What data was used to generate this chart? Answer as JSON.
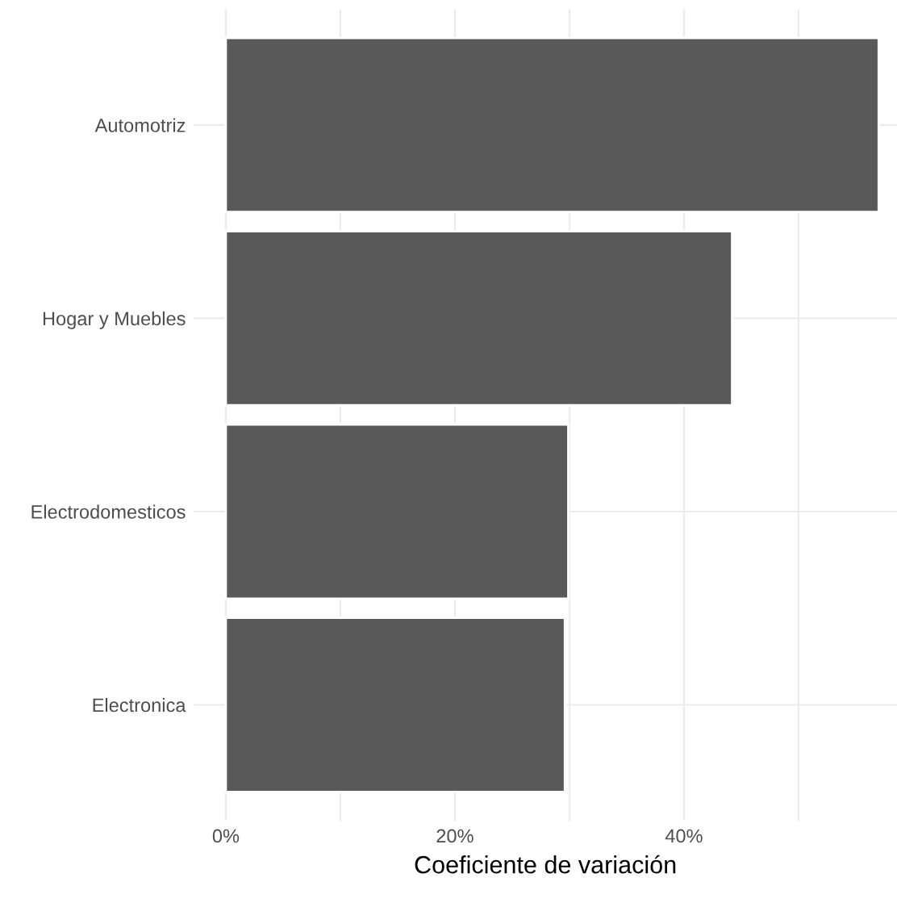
{
  "chart_data": {
    "type": "bar",
    "orientation": "horizontal",
    "xlabel": "Coeficiente de variación",
    "categories": [
      "Automotriz",
      "Hogar y Muebles",
      "Electrodomesticos",
      "Electronica"
    ],
    "values": [
      57.0,
      44.2,
      29.9,
      29.6
    ],
    "color": "#595959",
    "xlim": [
      -2.8,
      58.6
    ],
    "xticks": [
      {
        "value": 0,
        "label": "0%"
      },
      {
        "value": 10,
        "label": null
      },
      {
        "value": 20,
        "label": "20%"
      },
      {
        "value": 30,
        "label": null
      },
      {
        "value": 40,
        "label": "40%"
      },
      {
        "value": 50,
        "label": null
      }
    ],
    "grid": true,
    "legend": false
  }
}
